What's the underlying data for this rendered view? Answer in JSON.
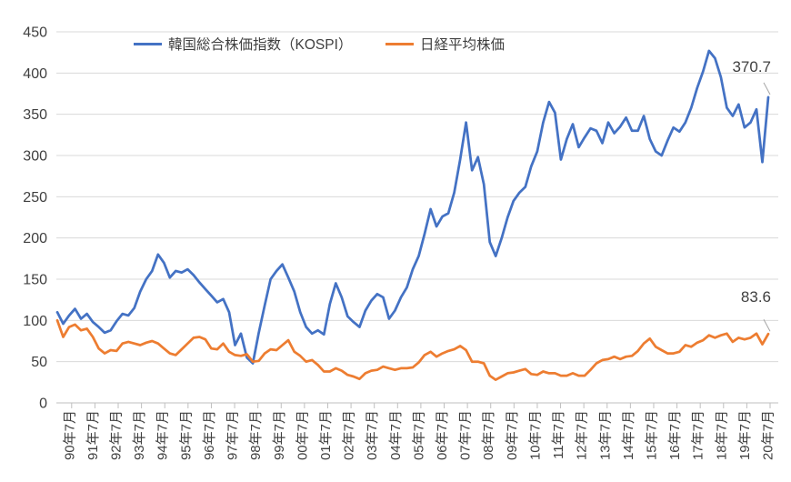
{
  "chart_data": {
    "type": "line",
    "title": "",
    "legend_position": "top",
    "grid": true,
    "ylim": [
      0,
      450
    ],
    "y_ticks": [
      0,
      50,
      100,
      150,
      200,
      250,
      300,
      350,
      400,
      450
    ],
    "x_tick_labels": [
      "90年7月",
      "91年7月",
      "92年7月",
      "93年7月",
      "94年7月",
      "95年7月",
      "96年7月",
      "97年7月",
      "98年7月",
      "99年7月",
      "00年7月",
      "01年7月",
      "02年7月",
      "03年7月",
      "04年7月",
      "05年7月",
      "06年7月",
      "07年7月",
      "08年7月",
      "09年7月",
      "10年7月",
      "11年7月",
      "12年7月",
      "13年7月",
      "14年7月",
      "15年7月",
      "16年7月",
      "17年7月",
      "18年7月",
      "19年7月",
      "20年7月"
    ],
    "x_range": [
      "90年7月",
      "20年7月"
    ],
    "sampling": "quarterly estimates read from plot",
    "series": [
      {
        "name": "韓国総合株価指数（KOSPI）",
        "color": "#4472C4",
        "values": [
          110,
          96,
          106,
          114,
          102,
          108,
          98,
          92,
          85,
          88,
          99,
          108,
          106,
          115,
          135,
          150,
          160,
          180,
          170,
          152,
          160,
          158,
          162,
          155,
          146,
          138,
          130,
          122,
          126,
          110,
          70,
          84,
          55,
          48,
          85,
          118,
          150,
          160,
          168,
          152,
          135,
          110,
          92,
          84,
          88,
          83,
          120,
          145,
          128,
          105,
          98,
          92,
          112,
          124,
          132,
          128,
          102,
          112,
          128,
          140,
          162,
          178,
          205,
          235,
          214,
          226,
          230,
          255,
          295,
          340,
          282,
          298,
          265,
          195,
          178,
          200,
          225,
          245,
          255,
          262,
          287,
          305,
          340,
          365,
          352,
          295,
          320,
          338,
          310,
          322,
          333,
          330,
          315,
          340,
          327,
          335,
          346,
          330,
          330,
          348,
          320,
          305,
          300,
          318,
          334,
          329,
          340,
          358,
          382,
          402,
          427,
          418,
          395,
          358,
          348,
          362,
          334,
          340,
          356,
          292,
          370.7
        ]
      },
      {
        "name": "日経平均株価",
        "color": "#ED7D31",
        "values": [
          100,
          80,
          92,
          95,
          88,
          90,
          80,
          66,
          60,
          64,
          63,
          72,
          74,
          72,
          70,
          73,
          75,
          72,
          66,
          60,
          58,
          65,
          72,
          79,
          80,
          77,
          66,
          65,
          72,
          62,
          58,
          57,
          59,
          50,
          51,
          60,
          65,
          64,
          70,
          76,
          62,
          57,
          50,
          52,
          46,
          38,
          38,
          42,
          39,
          34,
          32,
          29,
          36,
          39,
          40,
          44,
          42,
          40,
          42,
          42,
          43,
          49,
          58,
          62,
          56,
          60,
          63,
          65,
          69,
          64,
          50,
          50,
          48,
          33,
          28,
          32,
          36,
          37,
          39,
          41,
          35,
          34,
          38,
          36,
          36,
          33,
          33,
          36,
          33,
          33,
          40,
          48,
          52,
          53,
          56,
          53,
          56,
          57,
          63,
          72,
          78,
          68,
          64,
          60,
          60,
          62,
          70,
          68,
          73,
          76,
          82,
          79,
          82,
          84,
          74,
          79,
          77,
          79,
          84,
          71,
          83.6
        ]
      }
    ],
    "annotations": [
      {
        "text": "370.7",
        "series": "韓国総合株価指数（KOSPI）",
        "position": "end of blue line, 20年7月"
      },
      {
        "text": "83.6",
        "series": "日経平均株価",
        "position": "end of orange line, 20年7月"
      }
    ],
    "colors": {
      "kospi_line": "#4472C4",
      "nikkei_line": "#ED7D31",
      "gridline": "#D9D9D9",
      "axis_line": "#BFBFBF",
      "tick_text": "#404040",
      "callout_line": "#A6A6A6"
    }
  }
}
